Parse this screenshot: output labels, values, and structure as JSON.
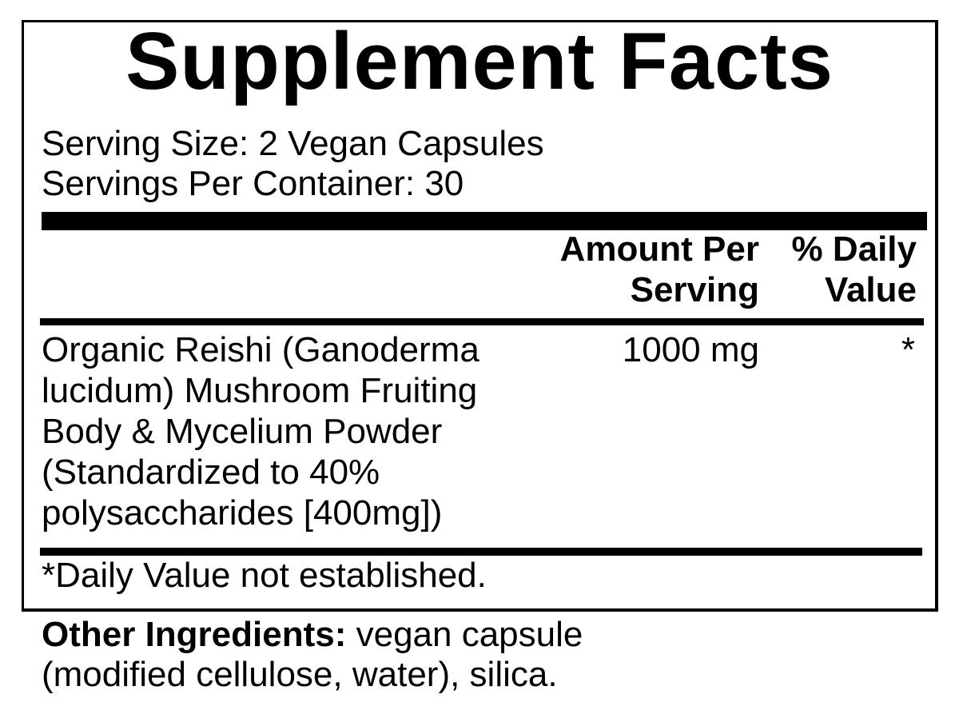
{
  "title": "Supplement Facts",
  "serving_size": "Serving Size: 2 Vegan Capsules",
  "servings_per_container": "Servings Per Container: 30",
  "header": {
    "amount_line1": "Amount Per",
    "amount_line2": "Serving",
    "dv_line1": "% Daily",
    "dv_line2": "Value"
  },
  "ingredients": [
    {
      "name_lines": [
        "Organic Reishi (Ganoderma",
        "lucidum) Mushroom Fruiting",
        "Body & Mycelium Powder",
        "(Standardized to 40%",
        "polysaccharides [400mg])"
      ],
      "amount": "1000 mg",
      "daily_value": "*"
    }
  ],
  "footnote": "*Daily Value not established.",
  "other_ingredients": {
    "label": "Other Ingredients:",
    "line1": " vegan capsule",
    "line2": "(modified cellulose, water), silica."
  }
}
